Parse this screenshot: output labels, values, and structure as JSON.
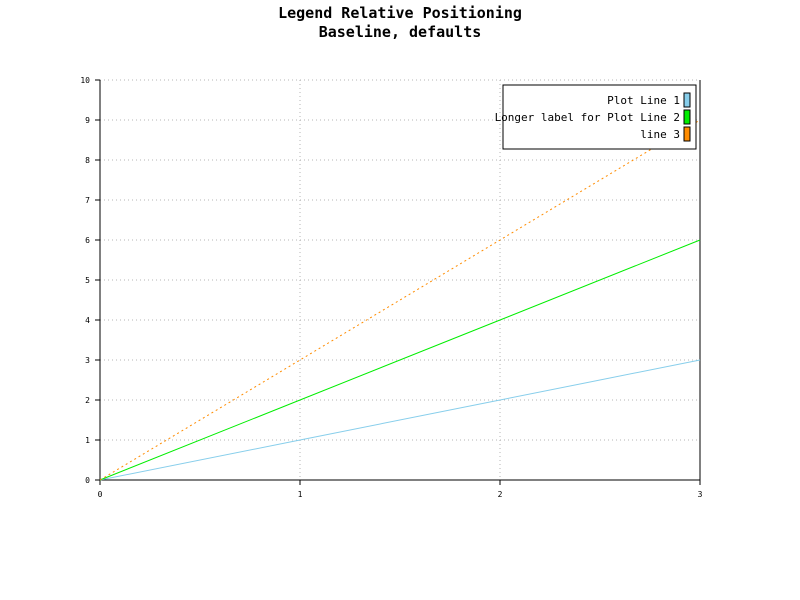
{
  "chart_data": {
    "type": "line",
    "title": "Legend Relative Positioning",
    "subtitle": "Baseline, defaults",
    "xlabel": "",
    "ylabel": "",
    "xlim": [
      0,
      3
    ],
    "ylim": [
      0,
      10
    ],
    "x_ticks": [
      "0",
      "1",
      "2",
      "3"
    ],
    "y_ticks": [
      "0",
      "1",
      "2",
      "3",
      "4",
      "5",
      "6",
      "7",
      "8",
      "9",
      "10"
    ],
    "grid": true,
    "legend_position": "top-right",
    "series": [
      {
        "name": "Plot Line 1",
        "x": [
          0,
          1,
          2,
          3
        ],
        "values": [
          0,
          1,
          2,
          3
        ],
        "color": "#87CEEB",
        "line_style": "solid"
      },
      {
        "name": "Longer label for Plot Line 2",
        "x": [
          0,
          1,
          2,
          3
        ],
        "values": [
          0,
          2,
          4,
          6
        ],
        "color": "#00EE00",
        "line_style": "solid"
      },
      {
        "name": "line 3",
        "x": [
          0,
          1,
          2,
          3
        ],
        "values": [
          0,
          3,
          6,
          9
        ],
        "color": "#FF8C00",
        "line_style": "dotted"
      }
    ]
  }
}
